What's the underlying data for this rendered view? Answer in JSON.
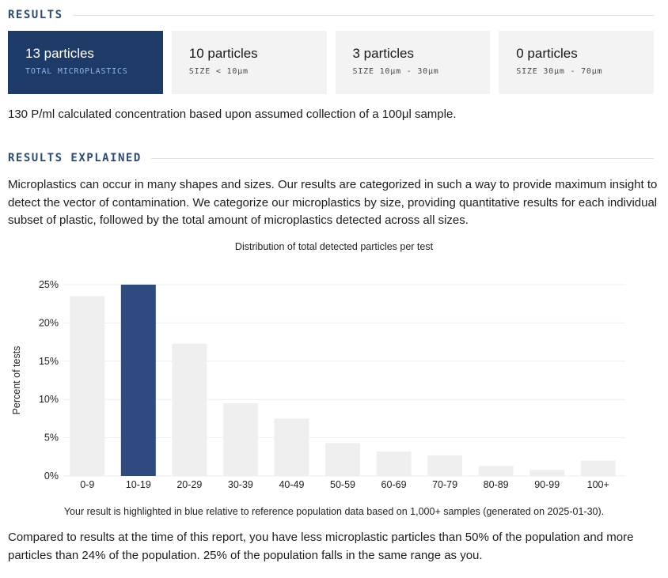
{
  "results": {
    "heading": "RESULTS",
    "cards": [
      {
        "value": "13 particles",
        "label": "TOTAL MICROPLASTICS"
      },
      {
        "value": "10 particles",
        "label": "SIZE < 10μm"
      },
      {
        "value": "3 particles",
        "label": "SIZE 10μm - 30μm"
      },
      {
        "value": "0 particles",
        "label": "SIZE 30μm - 70μm"
      }
    ],
    "concentration_text": "130 P/ml calculated concentration based upon assumed collection of a 100μl sample."
  },
  "explained": {
    "heading": "RESULTS EXPLAINED",
    "paragraph": "Microplastics can occur in many shapes and sizes. Our results are categorized in such a way to provide maximum insight to detect the vector of contamination. We categorize our microplastics by size, providing quantitative results for each individual subset of plastic, followed by the total amount of microplastics detected across all sizes.",
    "caption": "Your result is highlighted in blue relative to reference population data based on 1,000+ samples (generated on 2025-01-30).",
    "comparison": "Compared to results at the time of this report, you have less microplastic particles than 50% of the population and more particles than 24% of the population. 25% of the population falls in the same range as you."
  },
  "colors": {
    "highlight": "#2e4a7e",
    "bar": "#efefef",
    "grid": "#eeeeee"
  },
  "chart_data": {
    "type": "bar",
    "title": "Distribution of total detected particles per test",
    "xlabel": "",
    "ylabel": "Percent of tests",
    "categories": [
      "0-9",
      "10-19",
      "20-29",
      "30-39",
      "40-49",
      "50-59",
      "60-69",
      "70-79",
      "80-89",
      "90-99",
      "100+"
    ],
    "values": [
      23.5,
      25,
      17.3,
      9.5,
      7.5,
      4.3,
      3.2,
      2.7,
      1.3,
      0.8,
      2
    ],
    "highlight_category": "10-19",
    "ylim": [
      0,
      25
    ],
    "yticks": [
      0,
      5,
      10,
      15,
      20,
      25
    ],
    "ytick_labels": [
      "0%",
      "5%",
      "10%",
      "15%",
      "20%",
      "25%"
    ],
    "grid": true
  }
}
